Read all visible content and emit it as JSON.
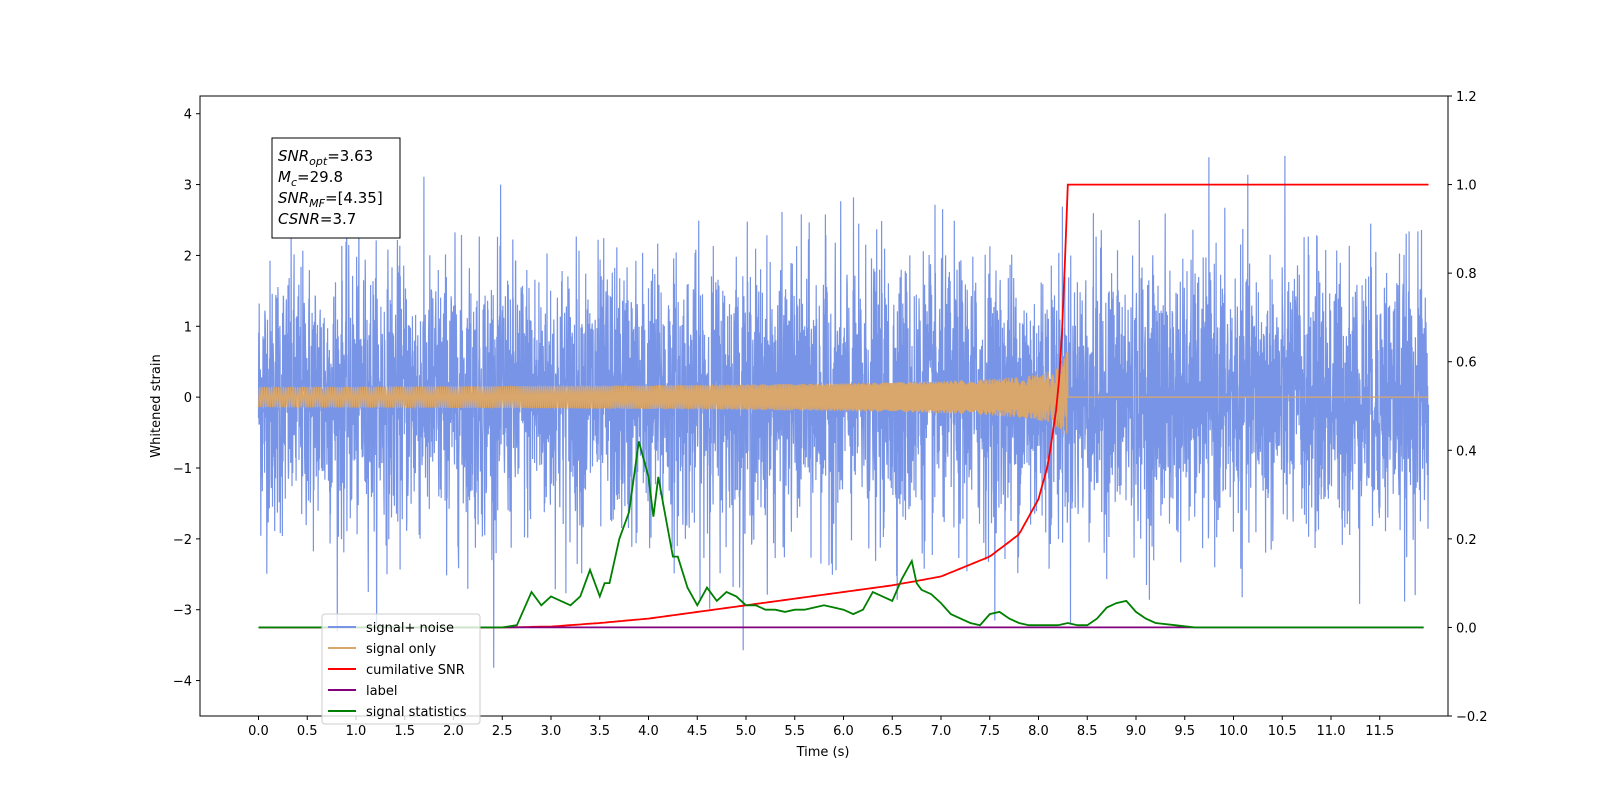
{
  "chart_data": {
    "type": "line",
    "xlabel": "Time (s)",
    "ylabel": "Whitened strain",
    "xlim": [
      -0.6,
      12.2
    ],
    "ylim": [
      -4.5,
      4.25
    ],
    "y2lim": [
      -0.2,
      1.2
    ],
    "x_ticks": [
      0.0,
      0.5,
      1.0,
      1.5,
      2.0,
      2.5,
      3.0,
      3.5,
      4.0,
      4.5,
      5.0,
      5.5,
      6.0,
      6.5,
      7.0,
      7.5,
      8.0,
      8.5,
      9.0,
      9.5,
      10.0,
      10.5,
      11.0,
      11.5
    ],
    "x_tick_labels": [
      "0.0",
      "0.5",
      "1.0",
      "1.5",
      "2.0",
      "2.5",
      "3.0",
      "3.5",
      "4.0",
      "4.5",
      "5.0",
      "5.5",
      "6.0",
      "6.5",
      "7.0",
      "7.5",
      "8.0",
      "8.5",
      "9.0",
      "9.5",
      "10.0",
      "10.5",
      "11.0",
      "11.5"
    ],
    "y_ticks": [
      -4,
      -3,
      -2,
      -1,
      0,
      1,
      2,
      3,
      4
    ],
    "y_tick_labels": [
      "−4",
      "−3",
      "−2",
      "−1",
      "0",
      "1",
      "2",
      "3",
      "4"
    ],
    "y2_ticks": [
      -0.2,
      0.0,
      0.2,
      0.4,
      0.6,
      0.8,
      1.0,
      1.2
    ],
    "y2_tick_labels": [
      "−0.2",
      "0.0",
      "0.2",
      "0.4",
      "0.6",
      "0.8",
      "1.0",
      "1.2"
    ],
    "annotation": [
      {
        "base": "SNR",
        "sub": "opt",
        "rest": "=3.63"
      },
      {
        "base": "M",
        "sub": "c",
        "rest": "=29.8"
      },
      {
        "base": "SNR",
        "sub": "MF",
        "rest": "=[4.35]"
      },
      {
        "base": "CSNR",
        "sub": "",
        "rest": "=3.7"
      }
    ],
    "legend_position": "lower-left",
    "series": [
      {
        "name": "signal+ noise",
        "color": "#7894e6",
        "axis": "left",
        "x_range": [
          0.0,
          12.0
        ],
        "std": 0.95,
        "max": 3.8,
        "min": -4.1
      },
      {
        "name": "signal only",
        "color": "#d9a66b",
        "axis": "left",
        "chirp": {
          "start": 0.0,
          "merger": 8.3,
          "peak_amplitude": 0.85
        }
      },
      {
        "name": "cumilative SNR",
        "color": "#ff0000",
        "axis": "right",
        "x": [
          0.0,
          2.5,
          3.0,
          3.5,
          4.0,
          4.5,
          5.0,
          5.5,
          6.0,
          6.5,
          7.0,
          7.5,
          7.8,
          8.0,
          8.1,
          8.2,
          8.25,
          8.3,
          12.0
        ],
        "y": [
          0.0,
          0.0,
          0.002,
          0.01,
          0.02,
          0.035,
          0.05,
          0.065,
          0.08,
          0.095,
          0.115,
          0.16,
          0.21,
          0.29,
          0.37,
          0.52,
          0.7,
          1.0,
          1.0
        ]
      },
      {
        "name": "label",
        "color": "#800080",
        "axis": "right",
        "x": [
          0.0,
          11.95
        ],
        "y": [
          0.0,
          0.0
        ]
      },
      {
        "name": "signal statistics",
        "color": "#008000",
        "axis": "right",
        "x": [
          0.0,
          2.5,
          2.65,
          2.8,
          2.9,
          3.0,
          3.1,
          3.2,
          3.3,
          3.4,
          3.5,
          3.55,
          3.6,
          3.7,
          3.8,
          3.9,
          4.0,
          4.05,
          4.1,
          4.15,
          4.2,
          4.25,
          4.3,
          4.4,
          4.5,
          4.6,
          4.7,
          4.8,
          4.9,
          5.0,
          5.1,
          5.2,
          5.3,
          5.4,
          5.5,
          5.6,
          5.7,
          5.8,
          5.9,
          6.0,
          6.1,
          6.2,
          6.3,
          6.4,
          6.5,
          6.6,
          6.7,
          6.75,
          6.8,
          6.9,
          7.0,
          7.1,
          7.2,
          7.3,
          7.4,
          7.5,
          7.6,
          7.7,
          7.8,
          7.9,
          8.0,
          8.1,
          8.2,
          8.3,
          8.4,
          8.5,
          8.6,
          8.7,
          8.8,
          8.9,
          9.0,
          9.1,
          9.2,
          9.4,
          9.6,
          9.8,
          11.95
        ],
        "y": [
          0.0,
          0.0,
          0.005,
          0.08,
          0.05,
          0.07,
          0.06,
          0.05,
          0.07,
          0.13,
          0.07,
          0.1,
          0.1,
          0.2,
          0.26,
          0.42,
          0.34,
          0.25,
          0.34,
          0.28,
          0.22,
          0.16,
          0.16,
          0.09,
          0.05,
          0.09,
          0.06,
          0.08,
          0.07,
          0.05,
          0.05,
          0.04,
          0.04,
          0.035,
          0.04,
          0.04,
          0.045,
          0.05,
          0.045,
          0.04,
          0.03,
          0.04,
          0.08,
          0.07,
          0.06,
          0.11,
          0.15,
          0.1,
          0.085,
          0.075,
          0.055,
          0.03,
          0.02,
          0.01,
          0.005,
          0.03,
          0.035,
          0.02,
          0.01,
          0.005,
          0.005,
          0.005,
          0.005,
          0.01,
          0.005,
          0.005,
          0.02,
          0.045,
          0.055,
          0.06,
          0.035,
          0.02,
          0.01,
          0.005,
          0.0,
          0.0,
          0.0
        ]
      }
    ]
  }
}
